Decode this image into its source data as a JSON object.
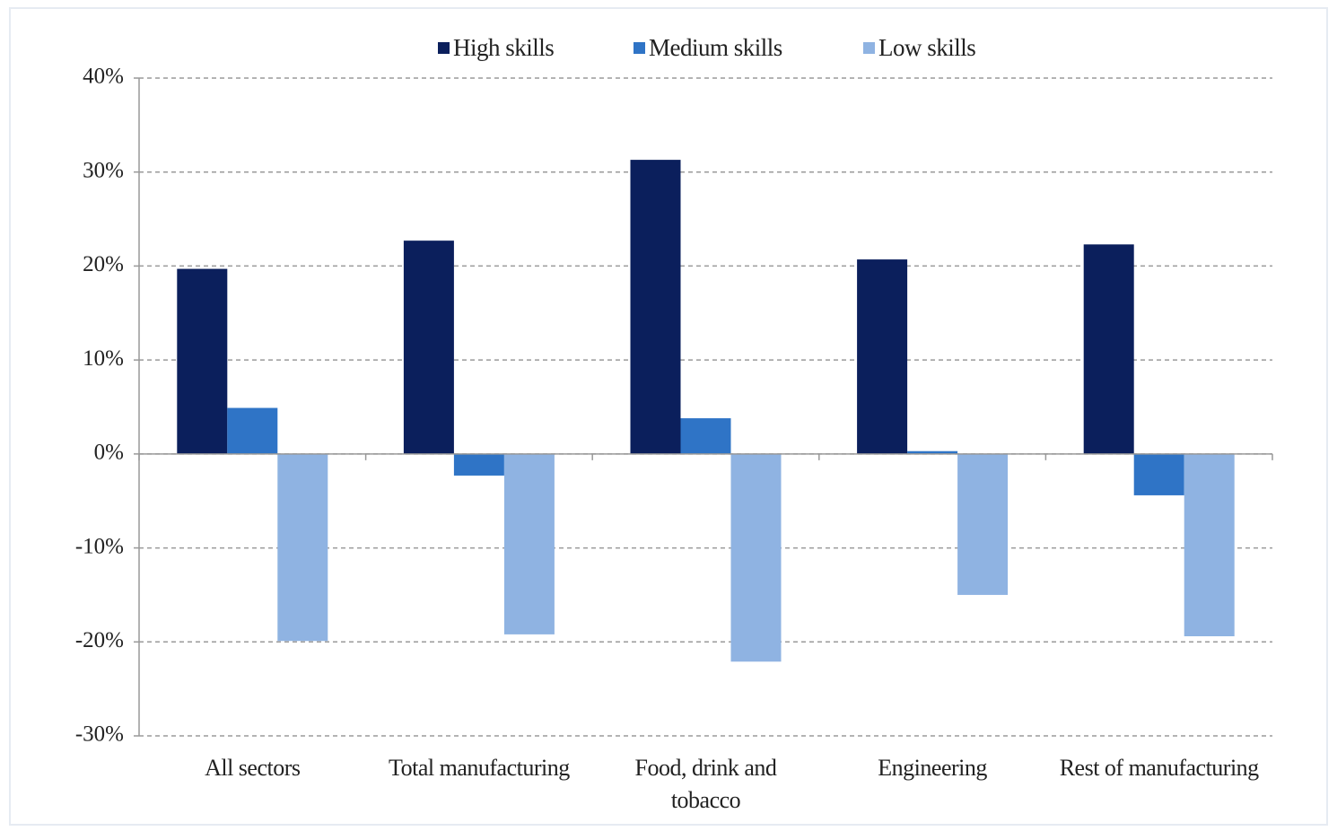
{
  "chart_data": {
    "type": "bar",
    "categories": [
      "All sectors",
      "Total manufacturing",
      "Food, drink and tobacco",
      "Engineering",
      "Rest of manufacturing"
    ],
    "series": [
      {
        "name": "High skills",
        "color": "#0b1f5c",
        "values": [
          19.7,
          22.7,
          31.3,
          20.7,
          22.3
        ]
      },
      {
        "name": "Medium skills",
        "color": "#2f74c6",
        "values": [
          4.9,
          -2.3,
          3.8,
          0.3,
          -4.4
        ]
      },
      {
        "name": "Low skills",
        "color": "#8fb3e2",
        "values": [
          -19.9,
          -19.2,
          -22.1,
          -15.0,
          -19.4
        ]
      }
    ],
    "ylim": [
      -30,
      40
    ],
    "yticks": [
      {
        "value": -30,
        "label": "-30%"
      },
      {
        "value": -20,
        "label": "-20%"
      },
      {
        "value": -10,
        "label": "-10%"
      },
      {
        "value": 0,
        "label": "0%"
      },
      {
        "value": 10,
        "label": "10%"
      },
      {
        "value": 20,
        "label": "20%"
      },
      {
        "value": 30,
        "label": "30%"
      },
      {
        "value": 40,
        "label": "40%"
      }
    ],
    "grid": true,
    "legend": "top"
  }
}
